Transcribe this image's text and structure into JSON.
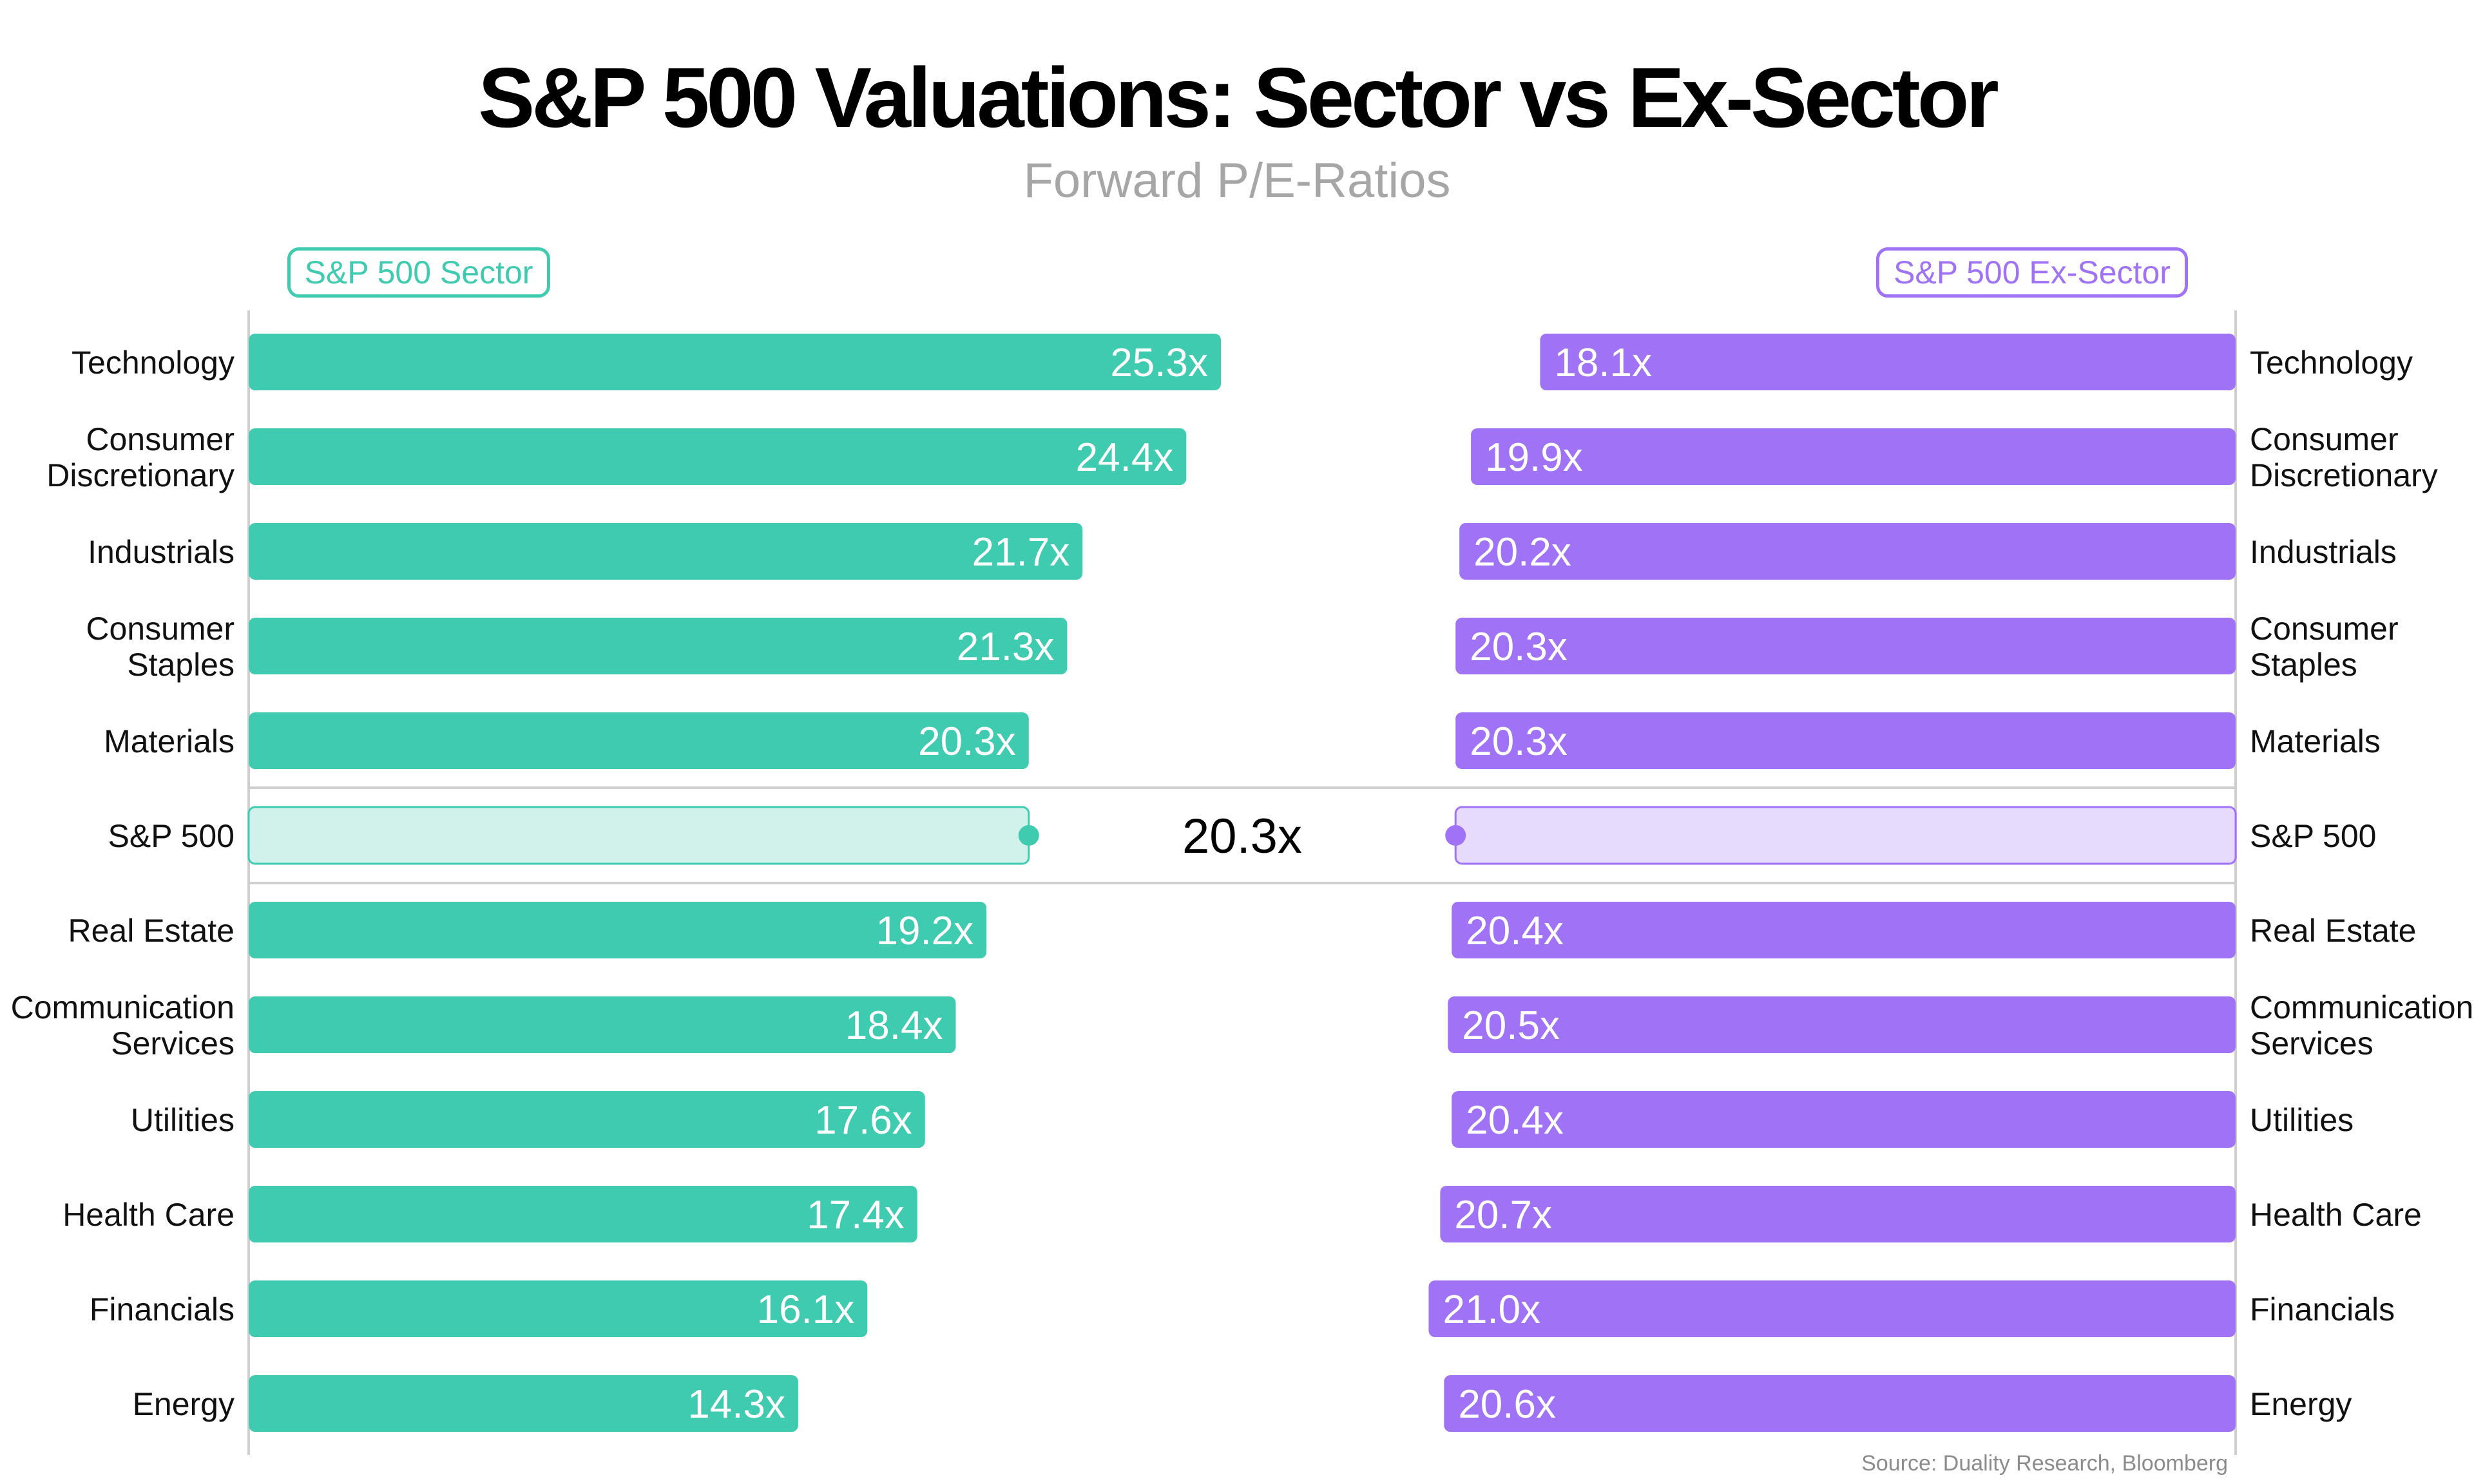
{
  "title": "S&P 500 Valuations: Sector vs Ex-Sector",
  "subtitle": "Forward P/E-Ratios",
  "source": "Source: Duality Research, Bloomberg",
  "colors": {
    "sector": "#3ecbb0",
    "ex_sector": "#9f72f6",
    "sector_light": "#d1f2eb",
    "ex_sector_light": "#e6dbfd",
    "label_on_bar": "#ffffff",
    "axis": "#cfcfcf"
  },
  "chart_data": {
    "type": "bar",
    "layout": "mirrored horizontal bars",
    "categories": [
      "Technology",
      "Consumer Discretionary",
      "Industrials",
      "Consumer Staples",
      "Materials",
      "S&P 500",
      "Real Estate",
      "Communication Services",
      "Utilities",
      "Health Care",
      "Financials",
      "Energy"
    ],
    "category_lines": [
      [
        "Technology"
      ],
      [
        "Consumer",
        "Discretionary"
      ],
      [
        "Industrials"
      ],
      [
        "Consumer",
        "Staples"
      ],
      [
        "Materials"
      ],
      [
        "S&P 500"
      ],
      [
        "Real Estate"
      ],
      [
        "Communication",
        "Services"
      ],
      [
        "Utilities"
      ],
      [
        "Health Care"
      ],
      [
        "Financials"
      ],
      [
        "Energy"
      ]
    ],
    "series": [
      {
        "name": "S&P 500 Sector",
        "values": [
          25.3,
          24.4,
          21.7,
          21.3,
          20.3,
          20.3,
          19.2,
          18.4,
          17.6,
          17.4,
          16.1,
          14.3
        ],
        "labels": [
          "25.3x",
          "24.4x",
          "21.7x",
          "21.3x",
          "20.3x",
          "",
          "19.2x",
          "18.4x",
          "17.6x",
          "17.4x",
          "16.1x",
          "14.3x"
        ]
      },
      {
        "name": "S&P 500 Ex-Sector",
        "values": [
          18.1,
          19.9,
          20.2,
          20.3,
          20.3,
          20.3,
          20.4,
          20.5,
          20.4,
          20.7,
          21.0,
          20.6
        ],
        "labels": [
          "18.1x",
          "19.9x",
          "20.2x",
          "20.3x",
          "20.3x",
          "",
          "20.4x",
          "20.5x",
          "20.4x",
          "20.7x",
          "21.0x",
          "20.6x"
        ]
      }
    ],
    "benchmark": {
      "category": "S&P 500",
      "value": 20.3,
      "label": "20.3x"
    },
    "xlim": [
      0,
      25.3
    ],
    "legend": [
      "S&P 500 Sector",
      "S&P 500 Ex-Sector"
    ],
    "legend_placement": "top-left and top-right",
    "grid": false
  }
}
